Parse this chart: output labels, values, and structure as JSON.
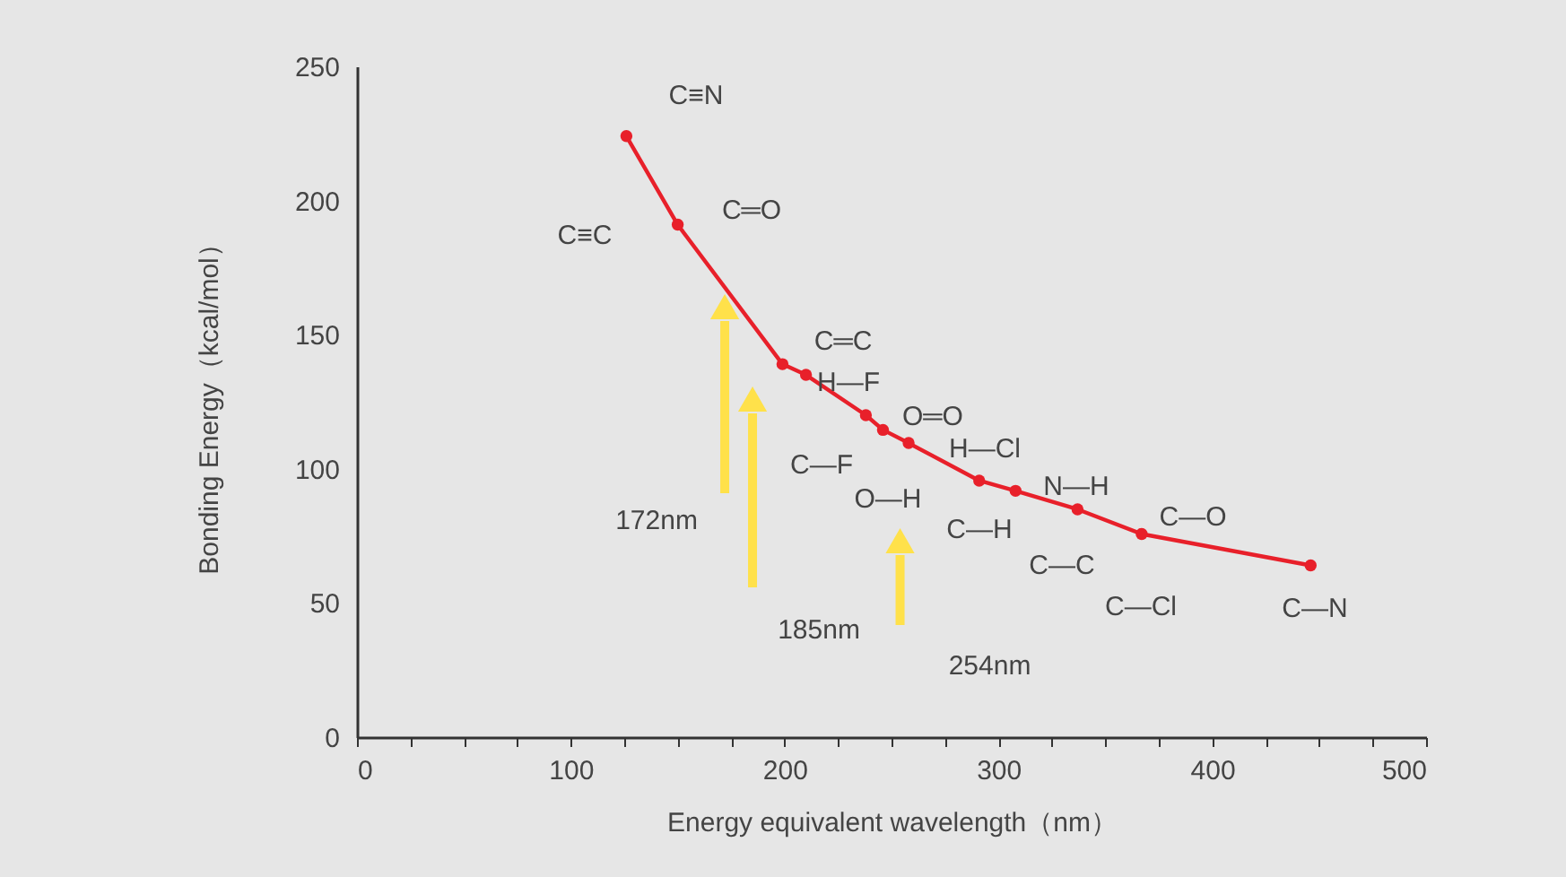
{
  "chart_data": {
    "type": "line",
    "xlabel": "Energy equivalent wavelength（nm）",
    "ylabel": "Bonding Energy（kcal/mol）",
    "x": [
      126,
      150,
      199,
      210,
      238,
      246,
      258,
      291,
      308,
      337,
      367,
      446
    ],
    "series": [
      {
        "color": "#e8202a",
        "values": [
          224,
          191,
          139,
          135,
          120,
          114.5,
          109.6,
          95.6,
          91.8,
          84.9,
          75.7,
          64
        ]
      }
    ],
    "xlim": [
      0,
      500
    ],
    "ylim": [
      0,
      250
    ],
    "xticks": [
      0,
      {
        "value": 25,
        "label": null
      },
      {
        "value": 50,
        "label": null
      },
      {
        "value": 75,
        "label": null
      },
      100,
      {
        "value": 125,
        "label": null
      },
      {
        "value": 150,
        "label": null
      },
      {
        "value": 175,
        "label": null
      },
      200,
      {
        "value": 225,
        "label": null
      },
      {
        "value": 250,
        "label": null
      },
      {
        "value": 275,
        "label": null
      },
      300,
      {
        "value": 325,
        "label": null
      },
      {
        "value": 350,
        "label": null
      },
      {
        "value": 375,
        "label": null
      },
      400,
      {
        "value": 425,
        "label": null
      },
      {
        "value": 450,
        "label": null
      },
      {
        "value": 475,
        "label": null
      },
      500
    ],
    "yticks": [
      0,
      50,
      100,
      150,
      200,
      250
    ],
    "grid": false,
    "marker": "circle",
    "line_style": "solid",
    "ref_lines": [
      {
        "axis": "x",
        "value": 172,
        "label": "172nm",
        "color": "#ffe14a"
      },
      {
        "axis": "x",
        "value": 185,
        "label": "185nm",
        "color": "#ffe14a"
      },
      {
        "axis": "x",
        "value": 254,
        "label": "254nm",
        "color": "#ffe14a"
      }
    ],
    "annotations": [
      "C≡N",
      "C≡C",
      "C═O",
      "C═C",
      "H—F",
      "O═O",
      "H—Cl",
      "C—F",
      "O—H",
      "N—H",
      "C—H",
      "C—O",
      "C—C",
      "C—Cl",
      "C—N"
    ]
  }
}
